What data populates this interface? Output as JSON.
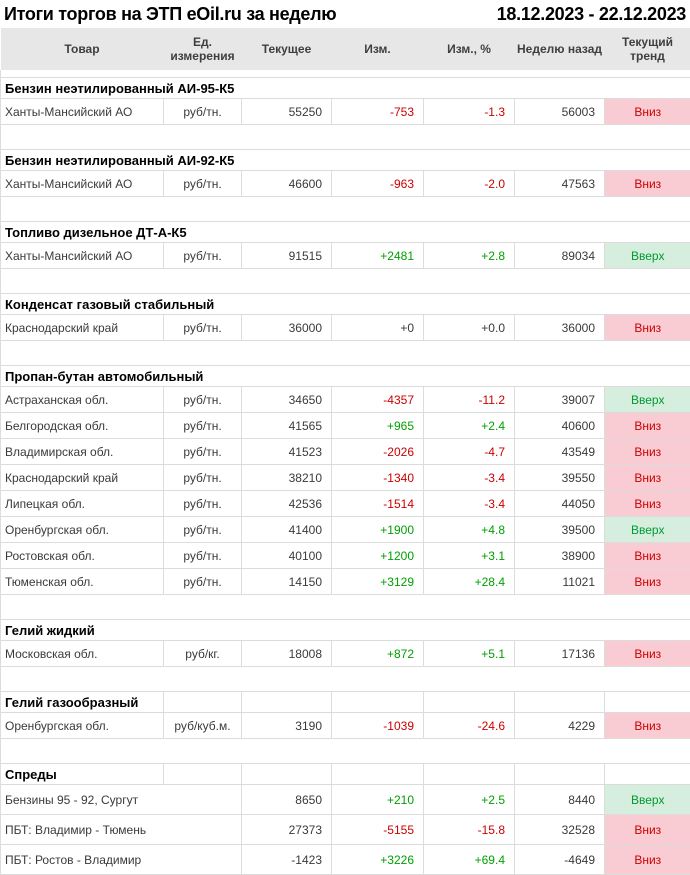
{
  "title": "Итоги торгов на ЭТП eOil.ru за неделю",
  "period": "18.12.2023 - 22.12.2023",
  "columns": [
    "Товар",
    "Ед. измерения",
    "Текущее",
    "Изм.",
    "Изм., %",
    "Неделю назад",
    "Текущий тренд"
  ],
  "trend_labels": {
    "up": "Вверх",
    "down": "Вниз"
  },
  "colors": {
    "positive_value": "#00a000",
    "negative_value": "#cc0000",
    "trend_up_bg": "#d6eedd",
    "trend_up_text": "#009a33",
    "trend_down_bg": "#f8ccd2",
    "trend_down_text": "#cc0000",
    "header_bg": "#e7e7e7",
    "grid_line": "#dcdcdc"
  },
  "sections": [
    {
      "name": "Бензин неэтилированный АИ-95-К5",
      "gridded_header": false,
      "rows": [
        {
          "product": "Ханты-Мансийский АО",
          "unit": "руб/тн.",
          "current": "55250",
          "change": "-753",
          "change_pct": "-1.3",
          "week_ago": "56003",
          "change_class": "neg",
          "trend": "down"
        }
      ]
    },
    {
      "name": "Бензин неэтилированный АИ-92-К5",
      "gridded_header": false,
      "rows": [
        {
          "product": "Ханты-Мансийский АО",
          "unit": "руб/тн.",
          "current": "46600",
          "change": "-963",
          "change_pct": "-2.0",
          "week_ago": "47563",
          "change_class": "neg",
          "trend": "down"
        }
      ]
    },
    {
      "name": "Топливо дизельное ДТ-А-К5",
      "gridded_header": false,
      "rows": [
        {
          "product": "Ханты-Мансийский АО",
          "unit": "руб/тн.",
          "current": "91515",
          "change": "+2481",
          "change_pct": "+2.8",
          "week_ago": "89034",
          "change_class": "pos",
          "trend": "up"
        }
      ]
    },
    {
      "name": "Конденсат газовый стабильный",
      "gridded_header": false,
      "rows": [
        {
          "product": "Краснодарский край",
          "unit": "руб/тн.",
          "current": "36000",
          "change": "+0",
          "change_pct": "+0.0",
          "week_ago": "36000",
          "change_class": "zero",
          "trend": "down"
        }
      ]
    },
    {
      "name": "Пропан-бутан автомобильный",
      "gridded_header": false,
      "rows": [
        {
          "product": "Астраханская обл.",
          "unit": "руб/тн.",
          "current": "34650",
          "change": "-4357",
          "change_pct": "-11.2",
          "week_ago": "39007",
          "change_class": "neg",
          "trend": "up"
        },
        {
          "product": "Белгородская обл.",
          "unit": "руб/тн.",
          "current": "41565",
          "change": "+965",
          "change_pct": "+2.4",
          "week_ago": "40600",
          "change_class": "pos",
          "trend": "down"
        },
        {
          "product": "Владимирская обл.",
          "unit": "руб/тн.",
          "current": "41523",
          "change": "-2026",
          "change_pct": "-4.7",
          "week_ago": "43549",
          "change_class": "neg",
          "trend": "down"
        },
        {
          "product": "Краснодарский край",
          "unit": "руб/тн.",
          "current": "38210",
          "change": "-1340",
          "change_pct": "-3.4",
          "week_ago": "39550",
          "change_class": "neg",
          "trend": "down"
        },
        {
          "product": "Липецкая обл.",
          "unit": "руб/тн.",
          "current": "42536",
          "change": "-1514",
          "change_pct": "-3.4",
          "week_ago": "44050",
          "change_class": "neg",
          "trend": "down"
        },
        {
          "product": "Оренбургская обл.",
          "unit": "руб/тн.",
          "current": "41400",
          "change": "+1900",
          "change_pct": "+4.8",
          "week_ago": "39500",
          "change_class": "pos",
          "trend": "up"
        },
        {
          "product": "Ростовская обл.",
          "unit": "руб/тн.",
          "current": "40100",
          "change": "+1200",
          "change_pct": "+3.1",
          "week_ago": "38900",
          "change_class": "pos",
          "trend": "down"
        },
        {
          "product": "Тюменская обл.",
          "unit": "руб/тн.",
          "current": "14150",
          "change": "+3129",
          "change_pct": "+28.4",
          "week_ago": "11021",
          "change_class": "pos",
          "trend": "down"
        }
      ]
    },
    {
      "name": "Гелий жидкий",
      "gridded_header": false,
      "rows": [
        {
          "product": "Московская обл.",
          "unit": "руб/кг.",
          "current": "18008",
          "change": "+872",
          "change_pct": "+5.1",
          "week_ago": "17136",
          "change_class": "pos",
          "trend": "down"
        }
      ]
    },
    {
      "name": "Гелий газообразный",
      "gridded_header": true,
      "rows": [
        {
          "product": "Оренбургская обл.",
          "unit": "руб/куб.м.",
          "current": "3190",
          "change": "-1039",
          "change_pct": "-24.6",
          "week_ago": "4229",
          "change_class": "neg",
          "trend": "down"
        }
      ]
    },
    {
      "name": "Спреды",
      "gridded_header": true,
      "merged_unit": true,
      "tall_rows": true,
      "rows": [
        {
          "product": "Бензины 95 - 92, Сургут",
          "unit": "",
          "current": "8650",
          "change": "+210",
          "change_pct": "+2.5",
          "week_ago": "8440",
          "change_class": "pos",
          "trend": "up"
        },
        {
          "product": "ПБТ: Владимир - Тюмень",
          "unit": "",
          "current": "27373",
          "change": "-5155",
          "change_pct": "-15.8",
          "week_ago": "32528",
          "change_class": "neg",
          "trend": "down"
        },
        {
          "product": "ПБТ: Ростов - Владимир",
          "unit": "",
          "current": "-1423",
          "change": "+3226",
          "change_pct": "+69.4",
          "week_ago": "-4649",
          "change_class": "pos",
          "trend": "down"
        }
      ]
    }
  ]
}
